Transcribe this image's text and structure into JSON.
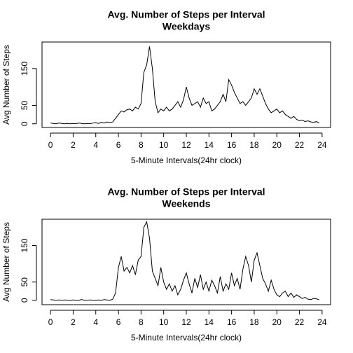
{
  "chart_data": [
    {
      "type": "line",
      "title": "Avg. Number of Steps per Interval",
      "subtitle": "Weekdays",
      "x_label": "5-Minute Intervals(24hr clock)",
      "y_label": "Avg Number of Steps",
      "x": [
        0,
        0.25,
        0.5,
        0.75,
        1,
        1.25,
        1.5,
        1.75,
        2,
        2.25,
        2.5,
        2.75,
        3,
        3.25,
        3.5,
        3.75,
        4,
        4.25,
        4.5,
        4.75,
        5,
        5.25,
        5.5,
        5.75,
        6,
        6.25,
        6.5,
        6.75,
        7,
        7.25,
        7.5,
        7.75,
        8,
        8.25,
        8.5,
        8.75,
        9,
        9.25,
        9.5,
        9.75,
        10,
        10.25,
        10.5,
        10.75,
        11,
        11.25,
        11.5,
        11.75,
        12,
        12.25,
        12.5,
        12.75,
        13,
        13.25,
        13.5,
        13.75,
        14,
        14.25,
        14.5,
        14.75,
        15,
        15.25,
        15.5,
        15.75,
        16,
        16.25,
        16.5,
        16.75,
        17,
        17.25,
        17.5,
        17.75,
        18,
        18.25,
        18.5,
        18.75,
        19,
        19.25,
        19.5,
        19.75,
        20,
        20.25,
        20.5,
        20.75,
        21,
        21.25,
        21.5,
        21.75,
        22,
        22.25,
        22.5,
        22.75,
        23,
        23.25,
        23.5,
        23.75
      ],
      "series": [
        {
          "name": "Weekdays",
          "color": "#000000",
          "values": [
            2,
            1,
            0,
            2,
            1,
            0,
            1,
            0,
            1,
            0,
            2,
            1,
            0,
            1,
            0,
            2,
            3,
            1,
            4,
            2,
            5,
            3,
            5,
            15,
            25,
            35,
            32,
            38,
            40,
            35,
            45,
            40,
            55,
            140,
            160,
            210,
            150,
            60,
            30,
            40,
            35,
            45,
            35,
            40,
            50,
            60,
            45,
            65,
            100,
            70,
            50,
            55,
            60,
            45,
            70,
            55,
            60,
            35,
            40,
            50,
            60,
            80,
            60,
            120,
            105,
            85,
            70,
            55,
            60,
            50,
            60,
            70,
            95,
            80,
            95,
            75,
            55,
            40,
            30,
            35,
            40,
            30,
            35,
            25,
            20,
            15,
            20,
            12,
            8,
            10,
            6,
            8,
            5,
            4,
            6,
            2
          ]
        }
      ],
      "xlim": [
        -0.75,
        24.75
      ],
      "xticks": [
        0,
        2,
        4,
        6,
        8,
        10,
        12,
        14,
        16,
        18,
        20,
        22,
        24
      ],
      "ylim": [
        -10,
        222
      ],
      "yticks": [
        0,
        50,
        150
      ]
    },
    {
      "type": "line",
      "title": "Avg. Number of Steps per Interval",
      "subtitle": "Weekends",
      "x_label": "5-Minute Intervals(24hr clock)",
      "y_label": "Avg Number of Steps",
      "x": [
        0,
        0.25,
        0.5,
        0.75,
        1,
        1.25,
        1.5,
        1.75,
        2,
        2.25,
        2.5,
        2.75,
        3,
        3.25,
        3.5,
        3.75,
        4,
        4.25,
        4.5,
        4.75,
        5,
        5.25,
        5.5,
        5.75,
        6,
        6.25,
        6.5,
        6.75,
        7,
        7.25,
        7.5,
        7.75,
        8,
        8.25,
        8.5,
        8.75,
        9,
        9.25,
        9.5,
        9.75,
        10,
        10.25,
        10.5,
        10.75,
        11,
        11.25,
        11.5,
        11.75,
        12,
        12.25,
        12.5,
        12.75,
        13,
        13.25,
        13.5,
        13.75,
        14,
        14.25,
        14.5,
        14.75,
        15,
        15.25,
        15.5,
        15.75,
        16,
        16.25,
        16.5,
        16.75,
        17,
        17.25,
        17.5,
        17.75,
        18,
        18.25,
        18.5,
        18.75,
        19,
        19.25,
        19.5,
        19.75,
        20,
        20.25,
        20.5,
        20.75,
        21,
        21.25,
        21.5,
        21.75,
        22,
        22.25,
        22.5,
        22.75,
        23,
        23.25,
        23.5,
        23.75
      ],
      "series": [
        {
          "name": "Weekends",
          "color": "#000000",
          "values": [
            2,
            1,
            0,
            1,
            0,
            1,
            0,
            0,
            1,
            0,
            0,
            2,
            0,
            0,
            1,
            0,
            0,
            1,
            0,
            2,
            1,
            0,
            3,
            20,
            90,
            120,
            80,
            90,
            75,
            95,
            70,
            110,
            120,
            200,
            215,
            170,
            80,
            60,
            40,
            90,
            50,
            30,
            45,
            25,
            40,
            15,
            30,
            55,
            75,
            45,
            20,
            60,
            35,
            70,
            30,
            50,
            25,
            55,
            40,
            20,
            65,
            25,
            45,
            30,
            75,
            40,
            60,
            30,
            85,
            120,
            95,
            50,
            110,
            130,
            95,
            60,
            45,
            25,
            55,
            30,
            15,
            10,
            20,
            25,
            10,
            20,
            8,
            15,
            10,
            5,
            8,
            3,
            2,
            5,
            4,
            1
          ]
        }
      ],
      "xlim": [
        -0.75,
        24.75
      ],
      "xticks": [
        0,
        2,
        4,
        6,
        8,
        10,
        12,
        14,
        16,
        18,
        20,
        22,
        24
      ],
      "ylim": [
        -12,
        222
      ],
      "yticks": [
        0,
        50,
        150
      ]
    }
  ]
}
